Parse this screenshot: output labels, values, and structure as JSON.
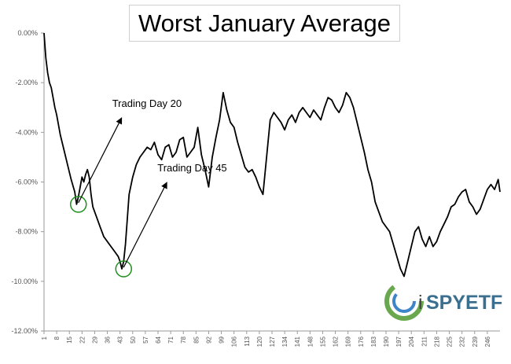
{
  "chart_data": {
    "type": "line",
    "title": "Worst January Average",
    "xlabel": "",
    "ylabel": "",
    "xlim": [
      1,
      253
    ],
    "ylim": [
      -12,
      0
    ],
    "y_ticks": [
      0,
      -2,
      -4,
      -6,
      -8,
      -10,
      -12
    ],
    "y_tick_labels": [
      "0.00%",
      "-2.00%",
      "-4.00%",
      "-6.00%",
      "-8.00%",
      "-10.00%",
      "-12.00%"
    ],
    "x_tick_labels": [
      "1",
      "8",
      "15",
      "22",
      "29",
      "36",
      "43",
      "50",
      "57",
      "64",
      "71",
      "78",
      "85",
      "92",
      "99",
      "106",
      "113",
      "120",
      "127",
      "134",
      "141",
      "148",
      "155",
      "162",
      "169",
      "176",
      "183",
      "190",
      "197",
      "204",
      "211",
      "218",
      "225",
      "232",
      "239",
      "246"
    ],
    "grid": false,
    "legend": "none",
    "series": [
      {
        "color": "#000000",
        "x": [
          1,
          2,
          3,
          4,
          5,
          6,
          7,
          8,
          9,
          10,
          12,
          14,
          16,
          18,
          19,
          20,
          21,
          22,
          23,
          24,
          25,
          26,
          27,
          28,
          30,
          32,
          34,
          36,
          38,
          40,
          42,
          43,
          44,
          45,
          46,
          47,
          48,
          50,
          52,
          54,
          56,
          58,
          60,
          62,
          64,
          66,
          68,
          70,
          72,
          74,
          76,
          78,
          80,
          82,
          84,
          86,
          88,
          90,
          92,
          94,
          96,
          98,
          100,
          102,
          104,
          106,
          108,
          110,
          112,
          114,
          116,
          118,
          120,
          122,
          124,
          126,
          128,
          130,
          132,
          134,
          136,
          138,
          140,
          142,
          144,
          146,
          148,
          150,
          152,
          154,
          156,
          158,
          160,
          162,
          164,
          166,
          168,
          170,
          172,
          174,
          176,
          178,
          180,
          182,
          184,
          186,
          188,
          190,
          192,
          194,
          196,
          198,
          200,
          202,
          204,
          206,
          208,
          210,
          212,
          214,
          216,
          218,
          220,
          222,
          224,
          226,
          228,
          230,
          232,
          234,
          236,
          238,
          240,
          242,
          244,
          246,
          248,
          250,
          252,
          253
        ],
        "values": [
          0.0,
          -1.0,
          -1.6,
          -2.0,
          -2.2,
          -2.6,
          -3.0,
          -3.3,
          -3.7,
          -4.1,
          -4.7,
          -5.3,
          -5.9,
          -6.4,
          -6.9,
          -6.6,
          -6.2,
          -5.8,
          -6.0,
          -5.7,
          -5.5,
          -5.8,
          -6.5,
          -7.0,
          -7.4,
          -7.8,
          -8.2,
          -8.4,
          -8.6,
          -8.8,
          -9.0,
          -9.2,
          -9.5,
          -9.2,
          -8.5,
          -7.5,
          -6.5,
          -5.8,
          -5.3,
          -5.0,
          -4.8,
          -4.6,
          -4.7,
          -4.4,
          -4.9,
          -5.1,
          -4.6,
          -4.5,
          -5.0,
          -4.8,
          -4.3,
          -4.2,
          -5.0,
          -4.8,
          -4.6,
          -3.8,
          -4.9,
          -5.5,
          -6.2,
          -5.0,
          -4.2,
          -3.5,
          -2.4,
          -3.1,
          -3.6,
          -3.8,
          -4.4,
          -4.9,
          -5.4,
          -5.6,
          -5.5,
          -5.8,
          -6.2,
          -6.5,
          -5.0,
          -3.5,
          -3.2,
          -3.4,
          -3.6,
          -3.9,
          -3.5,
          -3.3,
          -3.6,
          -3.2,
          -3.0,
          -3.2,
          -3.4,
          -3.1,
          -3.3,
          -3.5,
          -3.0,
          -2.6,
          -2.7,
          -3.0,
          -3.2,
          -2.9,
          -2.4,
          -2.6,
          -3.0,
          -3.6,
          -4.2,
          -4.8,
          -5.5,
          -6.0,
          -6.8,
          -7.2,
          -7.6,
          -7.8,
          -8.0,
          -8.5,
          -9.0,
          -9.5,
          -9.8,
          -9.2,
          -8.6,
          -8.0,
          -7.8,
          -8.3,
          -8.6,
          -8.2,
          -8.6,
          -8.4,
          -8.0,
          -7.7,
          -7.4,
          -7.0,
          -6.9,
          -6.6,
          -6.4,
          -6.3,
          -6.8,
          -7.0,
          -7.3,
          -7.1,
          -6.7,
          -6.3,
          -6.1,
          -6.3,
          -5.9,
          -6.4
        ]
      }
    ],
    "annotations": [
      {
        "text": "Trading Day 20",
        "x": 20,
        "y": -6.9
      },
      {
        "text": "Trading Day 45",
        "x": 45,
        "y": -9.5
      }
    ]
  },
  "logo": {
    "prefix": "i",
    "brand": "SPYETF"
  }
}
